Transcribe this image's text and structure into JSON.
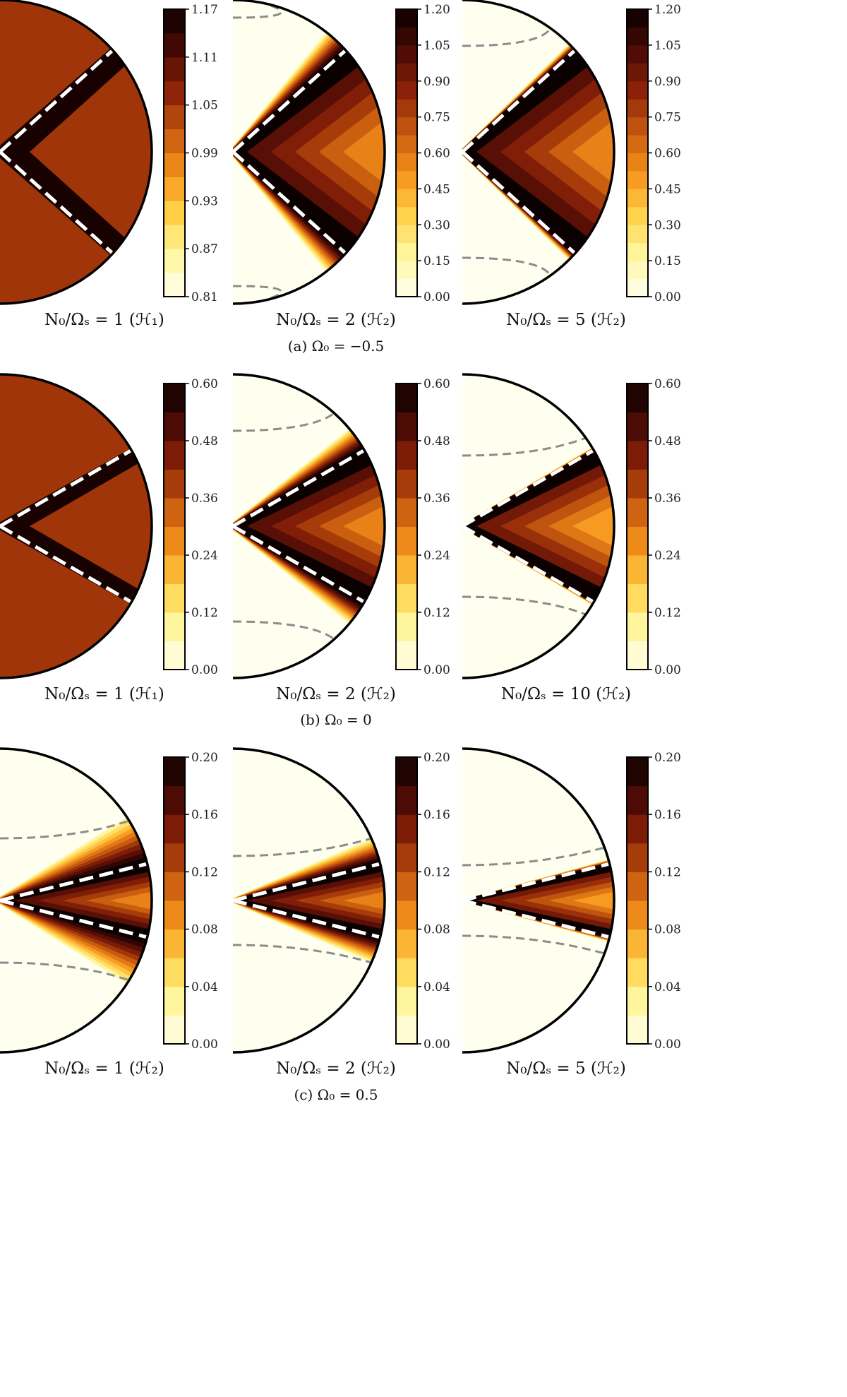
{
  "figure": {
    "rows": [
      {
        "caption": "(a) Ω₀ = −0.5",
        "panels": [
          {
            "caption": "N₀/Ωₛ = 1 (ℋ₁)",
            "colorbar_ticks": [
              "0.81",
              "0.87",
              "0.93",
              "0.99",
              "1.05",
              "1.11",
              "1.17"
            ],
            "vmin": 0.81,
            "vmax": 1.17
          },
          {
            "caption": "N₀/Ωₛ = 2 (ℋ₂)",
            "colorbar_ticks": [
              "0.00",
              "0.15",
              "0.30",
              "0.45",
              "0.60",
              "0.75",
              "0.90",
              "1.05",
              "1.20"
            ],
            "vmin": 0.0,
            "vmax": 1.2
          },
          {
            "caption": "N₀/Ωₛ = 5 (ℋ₂)",
            "colorbar_ticks": [
              "0.00",
              "0.15",
              "0.30",
              "0.45",
              "0.60",
              "0.75",
              "0.90",
              "1.05",
              "1.20"
            ],
            "vmin": 0.0,
            "vmax": 1.2
          }
        ]
      },
      {
        "caption": "(b) Ω₀ = 0",
        "panels": [
          {
            "caption": "N₀/Ωₛ = 1 (ℋ₁)",
            "colorbar_ticks": [
              "0.00",
              "0.12",
              "0.24",
              "0.36",
              "0.48",
              "0.60"
            ],
            "vmin": 0.0,
            "vmax": 0.6
          },
          {
            "caption": "N₀/Ωₛ = 2 (ℋ₂)",
            "colorbar_ticks": [
              "0.00",
              "0.12",
              "0.24",
              "0.36",
              "0.48",
              "0.60"
            ],
            "vmin": 0.0,
            "vmax": 0.6
          },
          {
            "caption": "N₀/Ωₛ = 10 (ℋ₂)",
            "colorbar_ticks": [
              "0.00",
              "0.12",
              "0.24",
              "0.36",
              "0.48",
              "0.60"
            ],
            "vmin": 0.0,
            "vmax": 0.6
          }
        ]
      },
      {
        "caption": "(c) Ω₀ = 0.5",
        "panels": [
          {
            "caption": "N₀/Ωₛ = 1 (ℋ₂)",
            "colorbar_ticks": [
              "0.00",
              "0.04",
              "0.08",
              "0.12",
              "0.16",
              "0.20"
            ],
            "vmin": 0.0,
            "vmax": 0.2
          },
          {
            "caption": "N₀/Ωₛ = 2 (ℋ₂)",
            "colorbar_ticks": [
              "0.00",
              "0.04",
              "0.08",
              "0.12",
              "0.16",
              "0.20"
            ],
            "vmin": 0.0,
            "vmax": 0.2
          },
          {
            "caption": "N₀/Ωₛ = 5 (ℋ₂)",
            "colorbar_ticks": [
              "0.00",
              "0.04",
              "0.08",
              "0.12",
              "0.16",
              "0.20"
            ],
            "vmin": 0.0,
            "vmax": 0.2
          }
        ]
      }
    ]
  },
  "chart_data": {
    "type": "heatmap",
    "description_type": "filled contour plots on half-disk domains with colorbars",
    "colormap": "afmhot_r",
    "colormap_stops": [
      "#fffff0",
      "#fff7a0",
      "#ffd24a",
      "#f5921b",
      "#c75b0f",
      "#8c2208",
      "#4a0a05",
      "#0a0000"
    ],
    "rows": [
      {
        "omega0": -0.5,
        "panels": [
          {
            "N0_over_Omega_s": 1,
            "space": "H1"
          },
          {
            "N0_over_Omega_s": 2,
            "space": "H2"
          },
          {
            "N0_over_Omega_s": 5,
            "space": "H2"
          }
        ]
      },
      {
        "omega0": 0,
        "panels": [
          {
            "N0_over_Omega_s": 1,
            "space": "H1"
          },
          {
            "N0_over_Omega_s": 2,
            "space": "H2"
          },
          {
            "N0_over_Omega_s": 10,
            "space": "H2"
          }
        ]
      },
      {
        "omega0": 0.5,
        "panels": [
          {
            "N0_over_Omega_s": 1,
            "space": "H2"
          },
          {
            "N0_over_Omega_s": 2,
            "space": "H2"
          },
          {
            "N0_over_Omega_s": 5,
            "space": "H2"
          }
        ]
      }
    ],
    "overlays": {
      "white_dashed": "characteristic wedge lines from center",
      "gray_dashed": "outer boundary curves"
    }
  }
}
